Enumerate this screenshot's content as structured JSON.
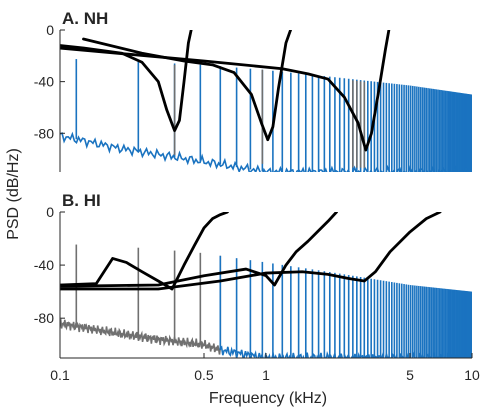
{
  "chart_data": [
    {
      "type": "line",
      "title": "A. NH",
      "xscale": "log",
      "xlim": [
        0.1,
        10
      ],
      "ylim": [
        -110,
        0
      ],
      "yticks": [
        0,
        -40,
        -80
      ],
      "ytick_labels": [
        "0",
        "-40",
        "-80"
      ],
      "colors": {
        "blue": "#1a73c0",
        "gray": "#707070",
        "black": "#000000"
      },
      "harmonic_f0_khz": 0.12,
      "series": [
        {
          "color": "blue",
          "style": "harmonic-spikes",
          "x": [
            0.1,
            0.2,
            0.5,
            1,
            2,
            5,
            10
          ],
          "peak": [
            -22,
            -24,
            -27,
            -31,
            -36,
            -43,
            -50
          ],
          "floor": [
            -82,
            -92,
            -102,
            -110,
            -110,
            -110,
            -110
          ]
        },
        {
          "color": "gray",
          "style": "harmonic-spikes-band",
          "bands_khz": [
            [
              0.31,
              0.37
            ],
            [
              0.85,
              1.01
            ],
            [
              2.55,
              3.05
            ]
          ],
          "x": [
            0.1,
            1,
            10
          ],
          "peak": [
            -22,
            -31,
            -50
          ],
          "floor": [
            -88,
            -104,
            -110
          ]
        },
        {
          "color": "black",
          "style": "tuning-curve",
          "x": [
            0.1,
            0.13,
            0.2,
            0.25,
            0.3,
            0.33,
            0.36,
            0.38,
            0.4,
            0.42,
            0.44
          ],
          "y": [
            -12,
            -14,
            -18,
            -25,
            -40,
            -62,
            -78,
            -70,
            -40,
            -10,
            5
          ]
        },
        {
          "color": "black",
          "style": "tuning-curve",
          "x": [
            0.13,
            0.25,
            0.4,
            0.55,
            0.7,
            0.85,
            0.95,
            1.02,
            1.08,
            1.15,
            1.25,
            1.35
          ],
          "y": [
            -7,
            -18,
            -24,
            -27,
            -33,
            -50,
            -72,
            -85,
            -75,
            -45,
            -10,
            5
          ]
        },
        {
          "color": "black",
          "style": "tuning-curve",
          "x": [
            0.1,
            0.5,
            1.2,
            1.6,
            2.0,
            2.4,
            2.8,
            3.05,
            3.25,
            3.5,
            3.8,
            4.0
          ],
          "y": [
            -14,
            -24,
            -30,
            -34,
            -38,
            -52,
            -72,
            -93,
            -80,
            -50,
            -15,
            5
          ]
        }
      ]
    },
    {
      "type": "line",
      "title": "B. HI",
      "xscale": "log",
      "xlim": [
        0.1,
        10
      ],
      "ylim": [
        -110,
        0
      ],
      "yticks": [
        0,
        -40,
        -80
      ],
      "ytick_labels": [
        "0",
        "-40",
        "-80"
      ],
      "xticks": [
        0.1,
        0.5,
        1,
        5,
        10
      ],
      "xtick_labels": [
        "0.1",
        "0.5",
        "1",
        "5",
        "10"
      ],
      "xlabel": "Frequency (kHz)",
      "ylabel": "PSD (dB/Hz)",
      "colors": {
        "blue": "#1a73c0",
        "gray": "#707070",
        "black": "#000000"
      },
      "harmonic_f0_khz": 0.12,
      "series": [
        {
          "color": "gray",
          "style": "harmonic-spikes",
          "x": [
            0.1,
            0.2,
            0.3,
            0.5,
            0.6
          ],
          "peak": [
            -24,
            -26,
            -28,
            -31,
            -33
          ],
          "floor": [
            -84,
            -92,
            -96,
            -100,
            -104
          ]
        },
        {
          "color": "blue",
          "style": "harmonic-spikes",
          "x": [
            0.6,
            1,
            2,
            5,
            10
          ],
          "peak": [
            -33,
            -38,
            -45,
            -55,
            -60
          ],
          "floor": [
            -104,
            -110,
            -110,
            -110,
            -110
          ]
        },
        {
          "color": "black",
          "style": "tuning-curve",
          "x": [
            0.1,
            0.15,
            0.18,
            0.21,
            0.25,
            0.3,
            0.35,
            0.4,
            0.45,
            0.5,
            0.55,
            0.6,
            0.65
          ],
          "y": [
            -55,
            -54,
            -35,
            -38,
            -45,
            -52,
            -58,
            -40,
            -25,
            -12,
            -5,
            -2,
            0
          ]
        },
        {
          "color": "black",
          "style": "tuning-curve",
          "x": [
            0.1,
            0.3,
            0.5,
            0.8,
            1.0,
            1.1,
            1.25,
            1.4,
            1.6,
            1.8,
            2.0,
            2.2
          ],
          "y": [
            -56,
            -55,
            -48,
            -43,
            -48,
            -55,
            -40,
            -30,
            -22,
            -14,
            -7,
            0
          ]
        },
        {
          "color": "black",
          "style": "tuning-curve",
          "x": [
            0.1,
            0.3,
            0.6,
            1.0,
            1.5,
            2.0,
            2.5,
            3.0,
            3.4,
            4.0,
            5.0,
            6.0,
            7.0
          ],
          "y": [
            -58,
            -58,
            -52,
            -46,
            -45,
            -47,
            -50,
            -52,
            -45,
            -30,
            -15,
            -5,
            0
          ]
        }
      ]
    }
  ]
}
